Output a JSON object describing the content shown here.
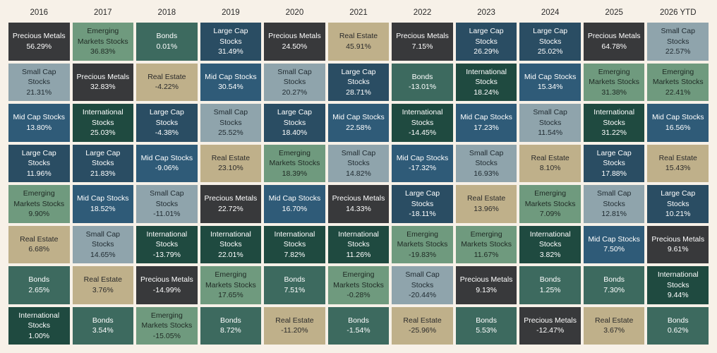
{
  "colors": {
    "Precious Metals": "#38393b",
    "Emerging Markets Stocks": "#6f9a7e",
    "Bonds": "#3d6a5f",
    "Large Cap Stocks": "#2a4d63",
    "Real Estate": "#bfb08a",
    "Small Cap Stocks": "#8fa4ac",
    "Mid Cap Stocks": "#2f5b78",
    "International Stocks": "#1f4a40"
  },
  "text_colors": {
    "Precious Metals": "#ffffff",
    "Emerging Markets Stocks": "#1f2a24",
    "Bonds": "#ffffff",
    "Large Cap Stocks": "#ffffff",
    "Real Estate": "#2a2a2a",
    "Small Cap Stocks": "#1f2a30",
    "Mid Cap Stocks": "#ffffff",
    "International Stocks": "#ffffff"
  },
  "chart_data": {
    "type": "table",
    "years": [
      "2016",
      "2017",
      "2018",
      "2019",
      "2020",
      "2021",
      "2022",
      "2023",
      "2024",
      "2025",
      "2026 YTD"
    ],
    "columns": [
      [
        {
          "asset": "Precious Metals",
          "lines": [
            "Precious Metals"
          ],
          "value": "56.29%"
        },
        {
          "asset": "Small Cap Stocks",
          "lines": [
            "Small Cap",
            "Stocks"
          ],
          "value": "21.31%"
        },
        {
          "asset": "Mid Cap Stocks",
          "lines": [
            "Mid Cap Stocks"
          ],
          "value": "13.80%"
        },
        {
          "asset": "Large Cap Stocks",
          "lines": [
            "Large Cap",
            "Stocks"
          ],
          "value": "11.96%"
        },
        {
          "asset": "Emerging Markets Stocks",
          "lines": [
            "Emerging",
            "Markets Stocks"
          ],
          "value": "9.90%"
        },
        {
          "asset": "Real Estate",
          "lines": [
            "Real Estate"
          ],
          "value": "6.68%"
        },
        {
          "asset": "Bonds",
          "lines": [
            "Bonds"
          ],
          "value": "2.65%"
        },
        {
          "asset": "International Stocks",
          "lines": [
            "International",
            "Stocks"
          ],
          "value": "1.00%"
        }
      ],
      [
        {
          "asset": "Emerging Markets Stocks",
          "lines": [
            "Emerging",
            "Markets Stocks"
          ],
          "value": "36.83%"
        },
        {
          "asset": "Precious Metals",
          "lines": [
            "Precious Metals"
          ],
          "value": "32.83%"
        },
        {
          "asset": "International Stocks",
          "lines": [
            "International",
            "Stocks"
          ],
          "value": "25.03%"
        },
        {
          "asset": "Large Cap Stocks",
          "lines": [
            "Large Cap",
            "Stocks"
          ],
          "value": "21.83%"
        },
        {
          "asset": "Mid Cap Stocks",
          "lines": [
            "Mid Cap Stocks"
          ],
          "value": "18.52%"
        },
        {
          "asset": "Small Cap Stocks",
          "lines": [
            "Small Cap",
            "Stocks"
          ],
          "value": "14.65%"
        },
        {
          "asset": "Real Estate",
          "lines": [
            "Real Estate"
          ],
          "value": "3.76%"
        },
        {
          "asset": "Bonds",
          "lines": [
            "Bonds"
          ],
          "value": "3.54%"
        }
      ],
      [
        {
          "asset": "Bonds",
          "lines": [
            "Bonds"
          ],
          "value": "0.01%"
        },
        {
          "asset": "Real Estate",
          "lines": [
            "Real Estate"
          ],
          "value": "-4.22%"
        },
        {
          "asset": "Large Cap Stocks",
          "lines": [
            "Large Cap",
            "Stocks"
          ],
          "value": "-4.38%"
        },
        {
          "asset": "Mid Cap Stocks",
          "lines": [
            "Mid Cap Stocks"
          ],
          "value": "-9.06%"
        },
        {
          "asset": "Small Cap Stocks",
          "lines": [
            "Small Cap",
            "Stocks"
          ],
          "value": "-11.01%"
        },
        {
          "asset": "International Stocks",
          "lines": [
            "International",
            "Stocks"
          ],
          "value": "-13.79%"
        },
        {
          "asset": "Precious Metals",
          "lines": [
            "Precious Metals"
          ],
          "value": "-14.99%"
        },
        {
          "asset": "Emerging Markets Stocks",
          "lines": [
            "Emerging",
            "Markets Stocks"
          ],
          "value": "-15.05%"
        }
      ],
      [
        {
          "asset": "Large Cap Stocks",
          "lines": [
            "Large Cap",
            "Stocks"
          ],
          "value": "31.49%"
        },
        {
          "asset": "Mid Cap Stocks",
          "lines": [
            "Mid Cap Stocks"
          ],
          "value": "30.54%"
        },
        {
          "asset": "Small Cap Stocks",
          "lines": [
            "Small Cap",
            "Stocks"
          ],
          "value": "25.52%"
        },
        {
          "asset": "Real Estate",
          "lines": [
            "Real Estate"
          ],
          "value": "23.10%"
        },
        {
          "asset": "Precious Metals",
          "lines": [
            "Precious Metals"
          ],
          "value": "22.72%"
        },
        {
          "asset": "International Stocks",
          "lines": [
            "International",
            "Stocks"
          ],
          "value": "22.01%"
        },
        {
          "asset": "Emerging Markets Stocks",
          "lines": [
            "Emerging",
            "Markets Stocks"
          ],
          "value": "17.65%"
        },
        {
          "asset": "Bonds",
          "lines": [
            "Bonds"
          ],
          "value": "8.72%"
        }
      ],
      [
        {
          "asset": "Precious Metals",
          "lines": [
            "Precious Metals"
          ],
          "value": "24.50%"
        },
        {
          "asset": "Small Cap Stocks",
          "lines": [
            "Small Cap",
            "Stocks"
          ],
          "value": "20.27%"
        },
        {
          "asset": "Large Cap Stocks",
          "lines": [
            "Large Cap",
            "Stocks"
          ],
          "value": "18.40%"
        },
        {
          "asset": "Emerging Markets Stocks",
          "lines": [
            "Emerging",
            "Markets Stocks"
          ],
          "value": "18.39%"
        },
        {
          "asset": "Mid Cap Stocks",
          "lines": [
            "Mid Cap Stocks"
          ],
          "value": "16.70%"
        },
        {
          "asset": "International Stocks",
          "lines": [
            "International",
            "Stocks"
          ],
          "value": "7.82%"
        },
        {
          "asset": "Bonds",
          "lines": [
            "Bonds"
          ],
          "value": "7.51%"
        },
        {
          "asset": "Real Estate",
          "lines": [
            "Real Estate"
          ],
          "value": "-11.20%"
        }
      ],
      [
        {
          "asset": "Real Estate",
          "lines": [
            "Real Estate"
          ],
          "value": "45.91%"
        },
        {
          "asset": "Large Cap Stocks",
          "lines": [
            "Large Cap",
            "Stocks"
          ],
          "value": "28.71%"
        },
        {
          "asset": "Mid Cap Stocks",
          "lines": [
            "Mid Cap Stocks"
          ],
          "value": "22.58%"
        },
        {
          "asset": "Small Cap Stocks",
          "lines": [
            "Small Cap",
            "Stocks"
          ],
          "value": "14.82%"
        },
        {
          "asset": "Precious Metals",
          "lines": [
            "Precious Metals"
          ],
          "value": "14.33%"
        },
        {
          "asset": "International Stocks",
          "lines": [
            "International",
            "Stocks"
          ],
          "value": "11.26%"
        },
        {
          "asset": "Emerging Markets Stocks",
          "lines": [
            "Emerging",
            "Markets Stocks"
          ],
          "value": "-0.28%"
        },
        {
          "asset": "Bonds",
          "lines": [
            "Bonds"
          ],
          "value": "-1.54%"
        }
      ],
      [
        {
          "asset": "Precious Metals",
          "lines": [
            "Precious Metals"
          ],
          "value": "7.15%"
        },
        {
          "asset": "Bonds",
          "lines": [
            "Bonds"
          ],
          "value": "-13.01%"
        },
        {
          "asset": "International Stocks",
          "lines": [
            "International",
            "Stocks"
          ],
          "value": "-14.45%"
        },
        {
          "asset": "Mid Cap Stocks",
          "lines": [
            "Mid Cap Stocks"
          ],
          "value": "-17.32%"
        },
        {
          "asset": "Large Cap Stocks",
          "lines": [
            "Large Cap",
            "Stocks"
          ],
          "value": "-18.11%"
        },
        {
          "asset": "Emerging Markets Stocks",
          "lines": [
            "Emerging",
            "Markets Stocks"
          ],
          "value": "-19.83%"
        },
        {
          "asset": "Small Cap Stocks",
          "lines": [
            "Small Cap",
            "Stocks"
          ],
          "value": "-20.44%"
        },
        {
          "asset": "Real Estate",
          "lines": [
            "Real Estate"
          ],
          "value": "-25.96%"
        }
      ],
      [
        {
          "asset": "Large Cap Stocks",
          "lines": [
            "Large Cap",
            "Stocks"
          ],
          "value": "26.29%"
        },
        {
          "asset": "International Stocks",
          "lines": [
            "International",
            "Stocks"
          ],
          "value": "18.24%"
        },
        {
          "asset": "Mid Cap Stocks",
          "lines": [
            "Mid Cap Stocks"
          ],
          "value": "17.23%"
        },
        {
          "asset": "Small Cap Stocks",
          "lines": [
            "Small Cap",
            "Stocks"
          ],
          "value": "16.93%"
        },
        {
          "asset": "Real Estate",
          "lines": [
            "Real Estate"
          ],
          "value": "13.96%"
        },
        {
          "asset": "Emerging Markets Stocks",
          "lines": [
            "Emerging",
            "Markets Stocks"
          ],
          "value": "11.67%"
        },
        {
          "asset": "Precious Metals",
          "lines": [
            "Precious Metals"
          ],
          "value": "9.13%"
        },
        {
          "asset": "Bonds",
          "lines": [
            "Bonds"
          ],
          "value": "5.53%"
        }
      ],
      [
        {
          "asset": "Large Cap Stocks",
          "lines": [
            "Large Cap",
            "Stocks"
          ],
          "value": "25.02%"
        },
        {
          "asset": "Mid Cap Stocks",
          "lines": [
            "Mid Cap Stocks"
          ],
          "value": "15.34%"
        },
        {
          "asset": "Small Cap Stocks",
          "lines": [
            "Small Cap",
            "Stocks"
          ],
          "value": "11.54%"
        },
        {
          "asset": "Real Estate",
          "lines": [
            "Real Estate"
          ],
          "value": "8.10%"
        },
        {
          "asset": "Emerging Markets Stocks",
          "lines": [
            "Emerging",
            "Markets Stocks"
          ],
          "value": "7.09%"
        },
        {
          "asset": "International Stocks",
          "lines": [
            "International",
            "Stocks"
          ],
          "value": "3.82%"
        },
        {
          "asset": "Bonds",
          "lines": [
            "Bonds"
          ],
          "value": "1.25%"
        },
        {
          "asset": "Precious Metals",
          "lines": [
            "Precious Metals"
          ],
          "value": "-12.47%"
        }
      ],
      [
        {
          "asset": "Precious Metals",
          "lines": [
            "Precious Metals"
          ],
          "value": "64.78%"
        },
        {
          "asset": "Emerging Markets Stocks",
          "lines": [
            "Emerging",
            "Markets Stocks"
          ],
          "value": "31.38%"
        },
        {
          "asset": "International Stocks",
          "lines": [
            "International",
            "Stocks"
          ],
          "value": "31.22%"
        },
        {
          "asset": "Large Cap Stocks",
          "lines": [
            "Large Cap",
            "Stocks"
          ],
          "value": "17.88%"
        },
        {
          "asset": "Small Cap Stocks",
          "lines": [
            "Small Cap",
            "Stocks"
          ],
          "value": "12.81%"
        },
        {
          "asset": "Mid Cap Stocks",
          "lines": [
            "Mid Cap Stocks"
          ],
          "value": "7.50%"
        },
        {
          "asset": "Bonds",
          "lines": [
            "Bonds"
          ],
          "value": "7.30%"
        },
        {
          "asset": "Real Estate",
          "lines": [
            "Real Estate"
          ],
          "value": "3.67%"
        }
      ],
      [
        {
          "asset": "Small Cap Stocks",
          "lines": [
            "Small Cap",
            "Stocks"
          ],
          "value": "22.57%"
        },
        {
          "asset": "Emerging Markets Stocks",
          "lines": [
            "Emerging",
            "Markets Stocks"
          ],
          "value": "22.41%"
        },
        {
          "asset": "Mid Cap Stocks",
          "lines": [
            "Mid Cap Stocks"
          ],
          "value": "16.56%"
        },
        {
          "asset": "Real Estate",
          "lines": [
            "Real Estate"
          ],
          "value": "15.43%"
        },
        {
          "asset": "Large Cap Stocks",
          "lines": [
            "Large Cap",
            "Stocks"
          ],
          "value": "10.21%"
        },
        {
          "asset": "Precious Metals",
          "lines": [
            "Precious Metals"
          ],
          "value": "9.61%"
        },
        {
          "asset": "International Stocks",
          "lines": [
            "International",
            "Stocks"
          ],
          "value": "9.44%"
        },
        {
          "asset": "Bonds",
          "lines": [
            "Bonds"
          ],
          "value": "0.62%"
        }
      ]
    ]
  }
}
